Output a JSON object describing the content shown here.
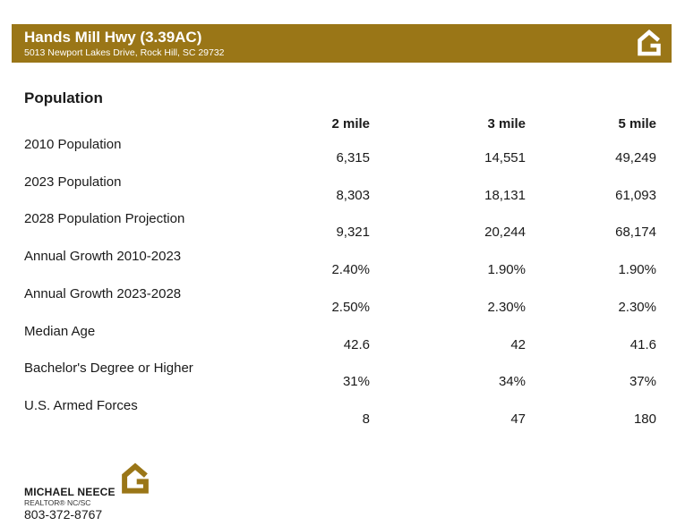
{
  "header": {
    "title": "Hands Mill Hwy (3.39AC)",
    "address": "5013 Newport Lakes Drive, Rock Hill, SC 29732",
    "logo_icon": "house-g-logo-icon"
  },
  "colors": {
    "brand": "#9a7617"
  },
  "section_title": "Population",
  "columns": [
    "2 mile",
    "3 mile",
    "5 mile"
  ],
  "rows": [
    {
      "label": "2010 Population",
      "values": [
        "6,315",
        "14,551",
        "49,249"
      ]
    },
    {
      "label": "2023 Population",
      "values": [
        "8,303",
        "18,131",
        "61,093"
      ]
    },
    {
      "label": "2028 Population Projection",
      "values": [
        "9,321",
        "20,244",
        "68,174"
      ]
    },
    {
      "label": "Annual Growth 2010-2023",
      "values": [
        "2.40%",
        "1.90%",
        "1.90%"
      ]
    },
    {
      "label": "Annual Growth 2023-2028",
      "values": [
        "2.50%",
        "2.30%",
        "2.30%"
      ]
    },
    {
      "label": "Median Age",
      "values": [
        "42.6",
        "42",
        "41.6"
      ]
    },
    {
      "label": "Bachelor's Degree or Higher",
      "values": [
        "31%",
        "34%",
        "37%"
      ]
    },
    {
      "label": "U.S. Armed Forces",
      "values": [
        "8",
        "47",
        "180"
      ]
    }
  ],
  "footer": {
    "name": "MICHAEL NEECE",
    "role": "REALTOR® NC/SC",
    "phone": "803-372-8767"
  }
}
